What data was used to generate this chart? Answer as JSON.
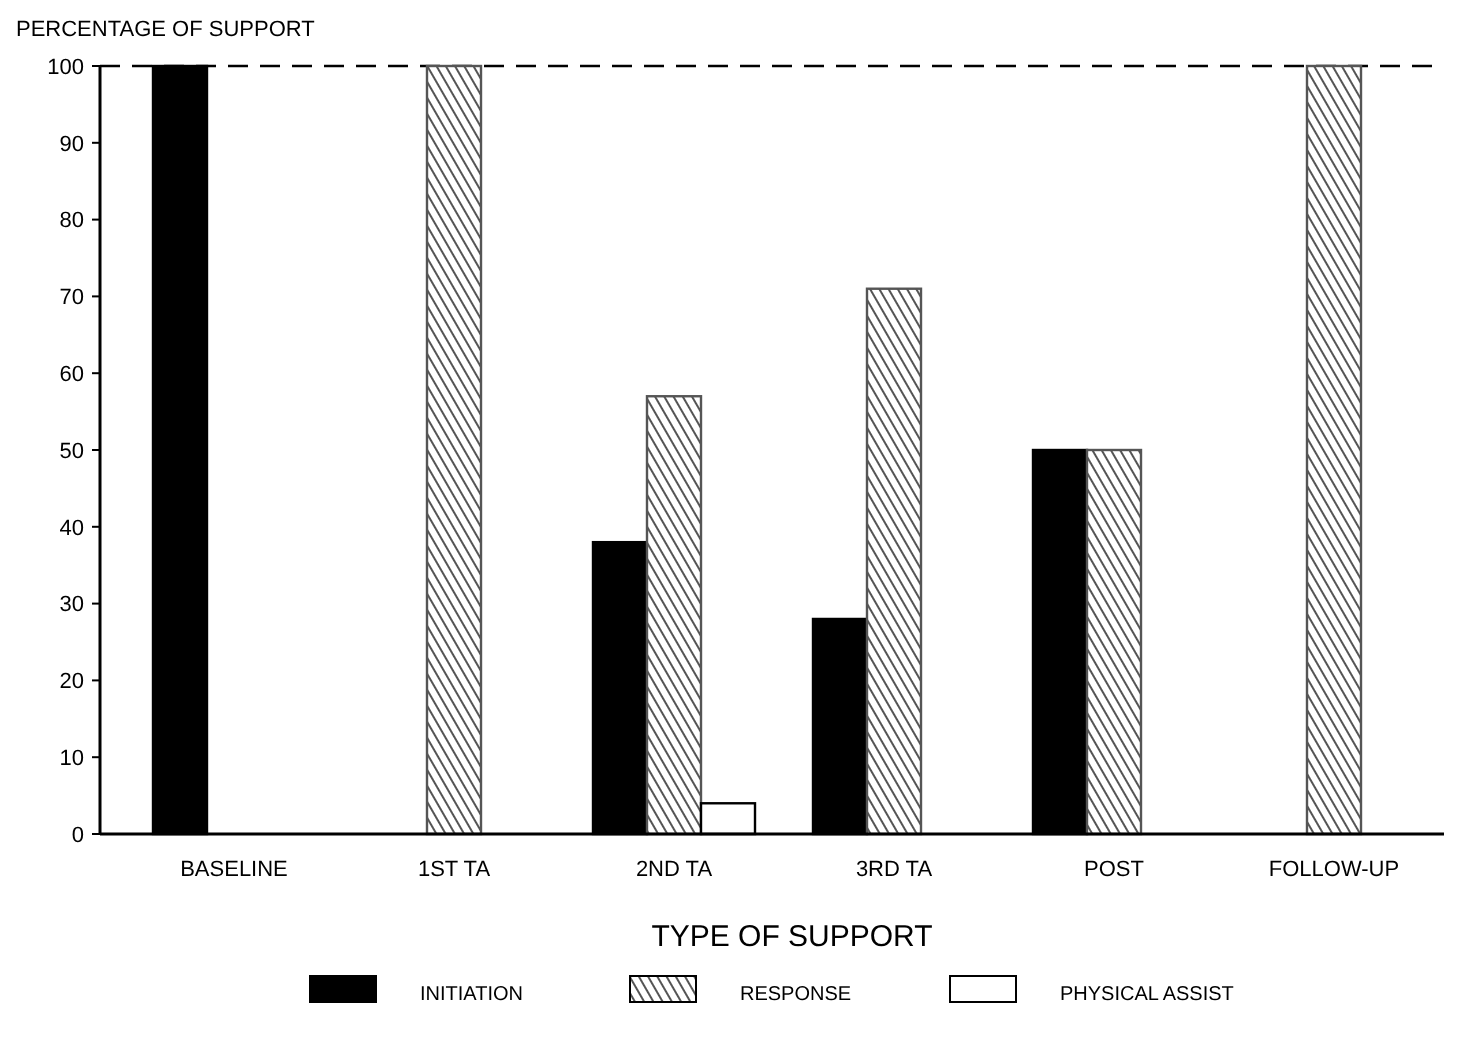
{
  "chart_data": {
    "type": "bar",
    "xlabel": "TYPE OF SUPPORT",
    "ylabel": "PERCENTAGE OF SUPPORT",
    "categories": [
      "BASELINE",
      "1ST TA",
      "2ND TA",
      "3RD TA",
      "POST",
      "FOLLOW-UP"
    ],
    "series": [
      {
        "name": "INITIATION",
        "color": "#000000",
        "values": [
          100,
          0,
          38,
          28,
          50,
          0
        ]
      },
      {
        "name": "RESPONSE",
        "color": "#555555",
        "values": [
          0,
          100,
          57,
          71,
          50,
          100
        ]
      },
      {
        "name": "PHYSICAL ASSIST",
        "color": "#ffffff",
        "values": [
          0,
          0,
          4,
          0,
          0,
          0
        ]
      }
    ],
    "ylim": [
      0,
      100
    ],
    "yticks": [
      0,
      10,
      20,
      30,
      40,
      50,
      60,
      70,
      80,
      90,
      100
    ],
    "grid": false,
    "legend": "bottom"
  }
}
